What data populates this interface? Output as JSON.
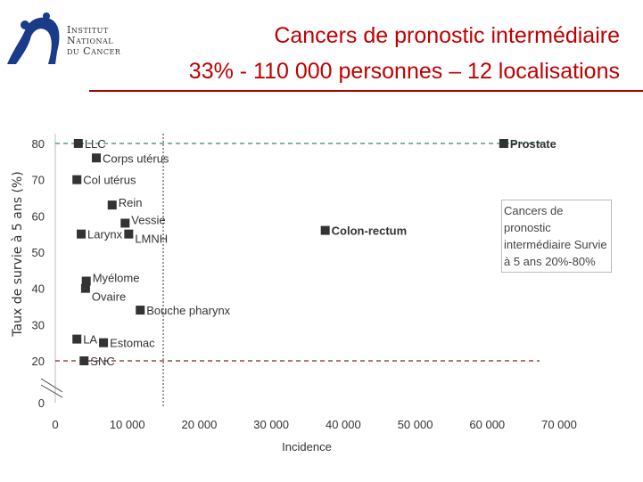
{
  "logo": {
    "line1": "Institut",
    "line2": "National",
    "line3": "du Cancer"
  },
  "header": {
    "title": "Cancers de pronostic intermédiaire",
    "subtitle": "33% - 110 000 personnes – 12 localisations"
  },
  "chart_data": {
    "type": "scatter",
    "xlabel": "Incidence",
    "ylabel": "Taux de survie à 5 ans (%)",
    "xlim": [
      0,
      70000
    ],
    "ylim": [
      0,
      80
    ],
    "xticks": [
      "0",
      "10 000",
      "20 000",
      "30 000",
      "40 000",
      "50 000",
      "60 000",
      "70 000"
    ],
    "yticks": [
      "0",
      "20",
      "30",
      "40",
      "50",
      "60",
      "70",
      "80"
    ],
    "axis_break": true,
    "reference_lines": {
      "y_upper": 80,
      "y_lower": 20,
      "x_vertical": 15000
    },
    "points": [
      {
        "label": "LLC",
        "x": 3200,
        "y": 80
      },
      {
        "label": "Corps utérus",
        "x": 5700,
        "y": 76
      },
      {
        "label": "Col utérus",
        "x": 3000,
        "y": 70
      },
      {
        "label": "Rein",
        "x": 7900,
        "y": 63
      },
      {
        "label": "Vessie",
        "x": 9700,
        "y": 58
      },
      {
        "label": "Larynx",
        "x": 3600,
        "y": 55
      },
      {
        "label": "LMNH",
        "x": 10200,
        "y": 55
      },
      {
        "label": "Myélome",
        "x": 4300,
        "y": 42
      },
      {
        "label": "Ovaire",
        "x": 4200,
        "y": 40
      },
      {
        "label": "Bouche pharynx",
        "x": 11800,
        "y": 34
      },
      {
        "label": "LA",
        "x": 3000,
        "y": 26
      },
      {
        "label": "Estomac",
        "x": 6700,
        "y": 25
      },
      {
        "label": "SNC",
        "x": 4000,
        "y": 20
      },
      {
        "label": "Colon-rectum",
        "x": 37500,
        "y": 56,
        "bold": true
      },
      {
        "label": "Prostate",
        "x": 62300,
        "y": 80,
        "bold": true
      }
    ],
    "legend": {
      "text": "Cancers de  pronostic intermédiaire Survie à 5 ans 20%-80%",
      "placement": "right"
    }
  }
}
